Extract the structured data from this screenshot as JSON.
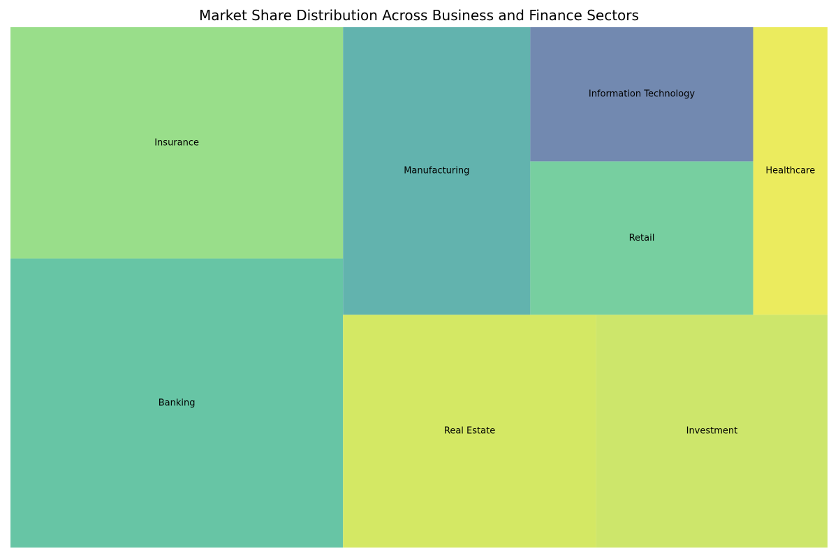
{
  "chart_data": {
    "type": "treemap",
    "title": "Market Share Distribution Across Business and Finance Sectors",
    "sectors": [
      {
        "name": "Banking",
        "value": 22.5,
        "color": "#67c5a5"
      },
      {
        "name": "Insurance",
        "value": 18.0,
        "color": "#99de8a"
      },
      {
        "name": "Real Estate",
        "value": 13.8,
        "color": "#d4e864"
      },
      {
        "name": "Investment",
        "value": 12.6,
        "color": "#cde66b"
      },
      {
        "name": "Manufacturing",
        "value": 12.6,
        "color": "#62b3ae"
      },
      {
        "name": "Retail",
        "value": 8.0,
        "color": "#77cfa0"
      },
      {
        "name": "Information Technology",
        "value": 7.0,
        "color": "#7289b0"
      },
      {
        "name": "Healthcare",
        "value": 5.0,
        "color": "#ebeb5e"
      }
    ]
  }
}
